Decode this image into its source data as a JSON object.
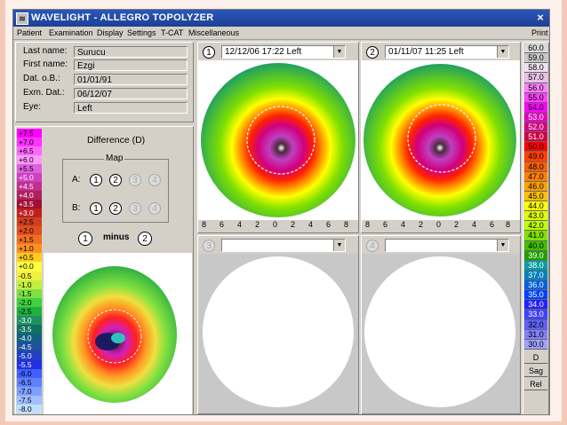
{
  "app": {
    "title": "WAVELIGHT  -  ALLEGRO TOPOLYZER",
    "close": "×"
  },
  "menu": {
    "items": [
      "Patient",
      "Examination",
      "Display",
      "Settings",
      "T-CAT",
      "Miscellaneous"
    ],
    "print": "Print"
  },
  "patient": {
    "last_name_label": "Last name:",
    "last_name": "Surucu",
    "first_name_label": "First name:",
    "first_name": "Ezgi",
    "dob_label": "Dat. o.B.:",
    "dob": "01/01/91",
    "exam_label": "Exm. Dat.:",
    "exam": "06/12/07",
    "eye_label": "Eye:",
    "eye": "Left"
  },
  "difference": {
    "title": "Difference (D)",
    "map_label": "Map",
    "row_a": "A:",
    "row_b": "B:",
    "buttons": [
      "1",
      "2",
      "3",
      "4"
    ],
    "minus_label": "minus",
    "minus_left": "1",
    "minus_right": "2"
  },
  "left_scale": [
    "+7.5",
    "+7.0",
    "+6.5",
    "+6.0",
    "+5.5",
    "+5.0",
    "+4.5",
    "+4.0",
    "+3.5",
    "+3.0",
    "+2.5",
    "+2.0",
    "+1.5",
    "+1.0",
    "+0.5",
    "+0.0",
    "-0.5",
    "-1.0",
    "-1.5",
    "-2.0",
    "-2.5",
    "-3.0",
    "-3.5",
    "-4.0",
    "-4.5",
    "-5.0",
    "-5.5",
    "-6.0",
    "-6.5",
    "-7.0",
    "-7.5",
    "-8.0"
  ],
  "left_scale_colors": [
    "#ff00ff",
    "#ff33ff",
    "#ff66ff",
    "#ff99ff",
    "#e060e0",
    "#d040c0",
    "#c03090",
    "#b02060",
    "#a01030",
    "#c02020",
    "#d04020",
    "#e05020",
    "#f07020",
    "#ff9020",
    "#ffcc20",
    "#ffff40",
    "#f0f040",
    "#c0f040",
    "#80e040",
    "#40d040",
    "#20b040",
    "#209060",
    "#107060",
    "#106080",
    "#2050a0",
    "#2040c0",
    "#2030e0",
    "#4060ff",
    "#6080ff",
    "#80a0ff",
    "#a0c0ff",
    "#c0e0ff"
  ],
  "maps": [
    {
      "num": "1",
      "date": "12/12/06  17:22 Left"
    },
    {
      "num": "2",
      "date": "01/11/07  11:25 Left"
    },
    {
      "num": "3",
      "date": ""
    },
    {
      "num": "4",
      "date": ""
    }
  ],
  "axis_ticks": [
    "8",
    "6",
    "4",
    "2",
    "0",
    "2",
    "4",
    "6",
    "8"
  ],
  "right_scale": [
    "60.0",
    "59.0",
    "58.0",
    "57.0",
    "56.0",
    "55.0",
    "54.0",
    "53.0",
    "52.0",
    "51.0",
    "50.0",
    "49.0",
    "48.0",
    "47.0",
    "46.0",
    "45.0",
    "44.0",
    "43.0",
    "42.0",
    "41.0",
    "40.0",
    "39.0",
    "38.0",
    "37.0",
    "36.0",
    "35.0",
    "34.0",
    "33.0",
    "32.0",
    "31.0",
    "30.0"
  ],
  "right_scale_colors": [
    "#d8d8d8",
    "#c8c8c8",
    "#f0e0f0",
    "#e8c0e8",
    "#ff80ff",
    "#ff40ff",
    "#ff00ff",
    "#e000c0",
    "#d00080",
    "#d00040",
    "#ff0000",
    "#ff4000",
    "#ff6000",
    "#ff8000",
    "#ffa000",
    "#ffc000",
    "#ffff00",
    "#e0ff00",
    "#c0ff00",
    "#80e000",
    "#40c000",
    "#20a000",
    "#00a0a0",
    "#0080c0",
    "#0060e0",
    "#0040ff",
    "#2020ff",
    "#4040ff",
    "#6060ff",
    "#8080ff",
    "#a0a0ff"
  ],
  "right_modes": [
    "D",
    "Sag",
    "Rel"
  ]
}
